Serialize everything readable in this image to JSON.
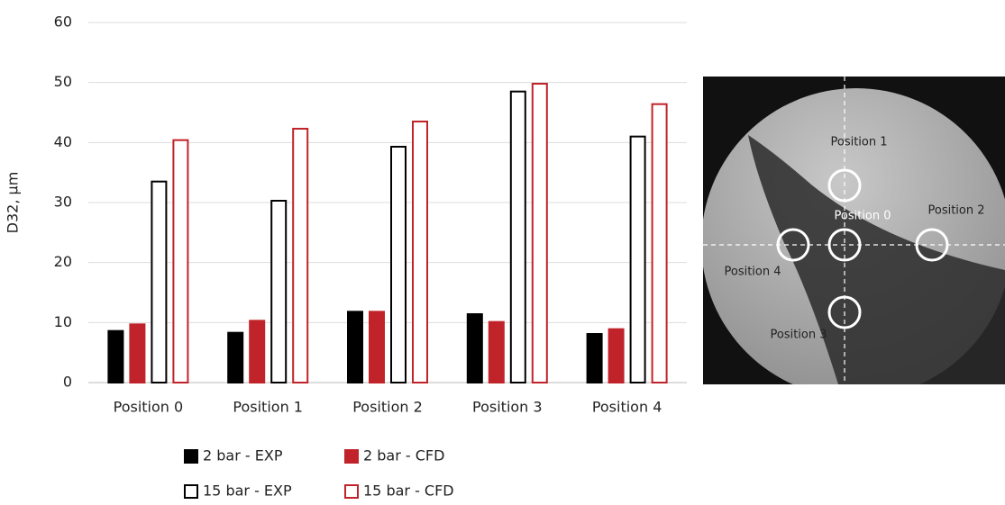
{
  "chart_data": {
    "type": "bar",
    "y_label": "D32, µm",
    "categories": [
      "Position 0",
      "Position 1",
      "Position 2",
      "Position 3",
      "Position 4"
    ],
    "series": [
      {
        "name": "2 bar - EXP",
        "color": "#000000",
        "filled": true,
        "values": [
          8.6,
          8.3,
          11.8,
          11.4,
          8.1
        ]
      },
      {
        "name": "2 bar - CFD",
        "color": "#c0232a",
        "filled": true,
        "values": [
          9.7,
          10.3,
          11.8,
          10.1,
          8.9
        ]
      },
      {
        "name": "15 bar - EXP",
        "color": "#000000",
        "filled": false,
        "values": [
          33.5,
          30.3,
          39.3,
          48.5,
          41.0
        ]
      },
      {
        "name": "15 bar - CFD",
        "color": "#c0232a",
        "filled": false,
        "values": [
          40.4,
          42.3,
          43.5,
          49.8,
          46.4
        ]
      }
    ],
    "ylim": [
      0,
      60
    ],
    "yticks": [
      0,
      10,
      20,
      30,
      40,
      50,
      60
    ],
    "grid": true
  },
  "inset": {
    "labels": [
      "Position 0",
      "Position 1",
      "Position 2",
      "Position 3",
      "Position 4"
    ]
  }
}
